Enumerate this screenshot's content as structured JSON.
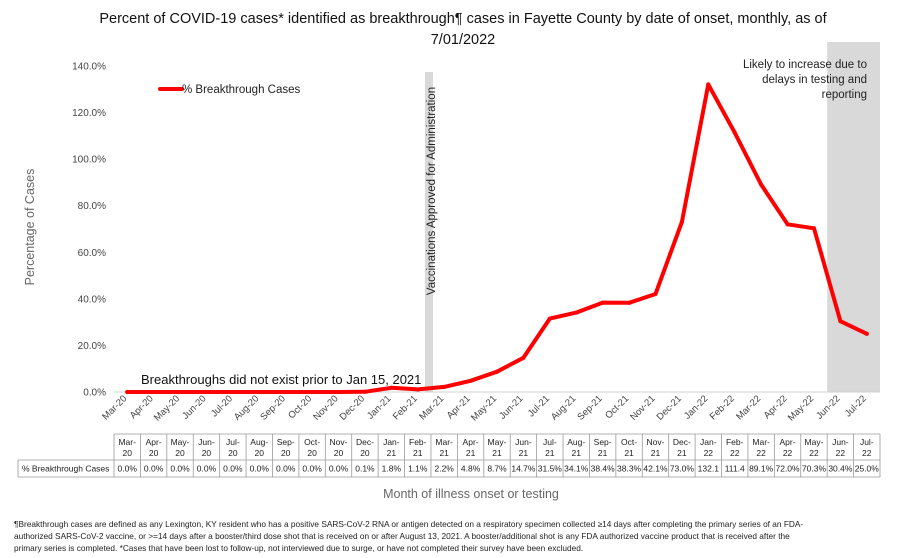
{
  "chart_data": {
    "type": "line",
    "title_line1": "Percent of COVID-19 cases* identified as breakthrough¶ cases in Fayette County by date of onset, monthly, as of",
    "title_line2": "7/01/2022",
    "ylabel": "Percentage of Cases",
    "xlabel": "Month of illness onset or testing",
    "ylim": [
      0,
      140
    ],
    "yticks": [
      "0.0%",
      "20.0%",
      "40.0%",
      "60.0%",
      "80.0%",
      "100.0%",
      "120.0%",
      "140.0%"
    ],
    "legend": {
      "label": "% Breakthrough Cases",
      "placement": "top-left"
    },
    "series": [
      {
        "name": "% Breakthrough Cases",
        "color": "#ff0000",
        "values": [
          0.0,
          0.0,
          0.0,
          0.0,
          0.0,
          0.0,
          0.0,
          0.0,
          0.0,
          0.1,
          1.8,
          1.1,
          2.2,
          4.8,
          8.7,
          14.7,
          31.5,
          34.1,
          38.4,
          38.3,
          42.1,
          73.0,
          132.1,
          111.4,
          89.1,
          72.0,
          70.3,
          30.4,
          25.0
        ]
      }
    ],
    "categories": [
      "Mar-20",
      "Apr-20",
      "May-20",
      "Jun-20",
      "Jul-20",
      "Aug-20",
      "Sep-20",
      "Oct-20",
      "Nov-20",
      "Dec-20",
      "Jan-21",
      "Feb-21",
      "Mar-21",
      "Apr-21",
      "May-21",
      "Jun-21",
      "Jul-21",
      "Aug-21",
      "Sep-21",
      "Oct-21",
      "Nov-21",
      "Dec-21",
      "Jan-22",
      "Feb-22",
      "Mar-22",
      "Apr-22",
      "May-22",
      "Jun-22",
      "Jul-22"
    ],
    "table_categories": [
      [
        "Mar-",
        "20"
      ],
      [
        "Apr-",
        "20"
      ],
      [
        "May-",
        "20"
      ],
      [
        "Jun-",
        "20"
      ],
      [
        "Jul-",
        "20"
      ],
      [
        "Aug-",
        "20"
      ],
      [
        "Sep-",
        "20"
      ],
      [
        "Oct-",
        "20"
      ],
      [
        "Nov-",
        "20"
      ],
      [
        "Dec-",
        "20"
      ],
      [
        "Jan-",
        "21"
      ],
      [
        "Feb-",
        "21"
      ],
      [
        "Mar-",
        "21"
      ],
      [
        "Apr-",
        "21"
      ],
      [
        "May-",
        "21"
      ],
      [
        "Jun-",
        "21"
      ],
      [
        "Jul-",
        "21"
      ],
      [
        "Aug-",
        "21"
      ],
      [
        "Sep-",
        "21"
      ],
      [
        "Oct-",
        "21"
      ],
      [
        "Nov-",
        "21"
      ],
      [
        "Dec-",
        "21"
      ],
      [
        "Jan-",
        "22"
      ],
      [
        "Feb-",
        "22"
      ],
      [
        "Mar-",
        "22"
      ],
      [
        "Apr-",
        "22"
      ],
      [
        "May-",
        "22"
      ],
      [
        "Jun-",
        "22"
      ],
      [
        "Jul-",
        "22"
      ]
    ],
    "table_row_label": "% Breakthrough Cases",
    "table_values": [
      "0.0%",
      "0.0%",
      "0.0%",
      "0.0%",
      "0.0%",
      "0.0%",
      "0.0%",
      "0.0%",
      "0.0%",
      "0.1%",
      "1.8%",
      "1.1%",
      "2.2%",
      "4.8%",
      "8.7%",
      "14.7%",
      "31.5%",
      "34.1%",
      "38.4%",
      "38.3%",
      "42.1%",
      "73.0%",
      "132.1",
      "111.4",
      "89.1%",
      "72.0%",
      "70.3%",
      "30.4%",
      "25.0%"
    ],
    "vaccination_marker": {
      "category": "Feb-21",
      "label": "Vaccinations Approved for Administration",
      "color": "#d9d9d9"
    },
    "shaded_region": {
      "from": "Jun-22",
      "to": "Jul-22",
      "color": "#d9d9d9",
      "label_lines": [
        "Likely to increase due to",
        "delays in testing and",
        "reporting"
      ]
    },
    "annotation": "Breakthroughs did not exist prior to Jan 15, 2021",
    "grid": false
  },
  "footnote_line1": "¶Breakthrough cases are defined as any Lexington, KY resident who has a positive SARS-CoV-2 RNA or antigen detected on a respiratory specimen collected ≥14 days after completing the primary series of an FDA-",
  "footnote_line2": "authorized SARS-CoV-2 vaccine, or >=14 days after a booster/third dose shot that is received on or after August 13, 2021.  A booster/additional shot is any FDA authorized vaccine product that is received after the",
  "footnote_line3": "primary series is completed.  *Cases that have been lost to follow-up, not interviewed due to surge, or have not completed their survey have been excluded."
}
